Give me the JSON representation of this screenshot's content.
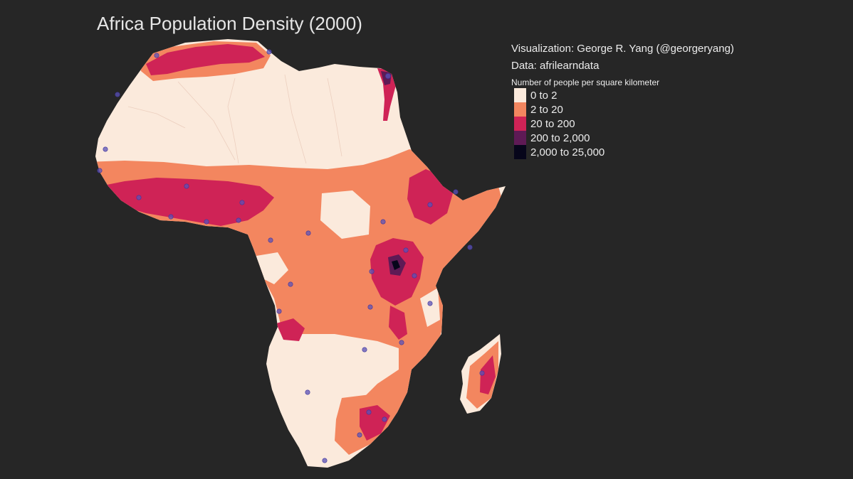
{
  "title": "Africa Population Density (2000)",
  "credits": {
    "visualization": "Visualization: George R. Yang (@georgeryang)",
    "data": "Data: afrilearndata"
  },
  "legend": {
    "title": "Number of people per square kilometer",
    "items": [
      {
        "label": "0 to 2",
        "color": "#fbeadc"
      },
      {
        "label": "2 to 20",
        "color": "#f3865f"
      },
      {
        "label": "20 to 200",
        "color": "#cf2356"
      },
      {
        "label": "200 to 2,000",
        "color": "#5e1a55"
      },
      {
        "label": "2,000 to 25,000",
        "color": "#06051a"
      }
    ]
  },
  "colors": {
    "background": "#262626",
    "city_markers": "#5b52b8"
  }
}
